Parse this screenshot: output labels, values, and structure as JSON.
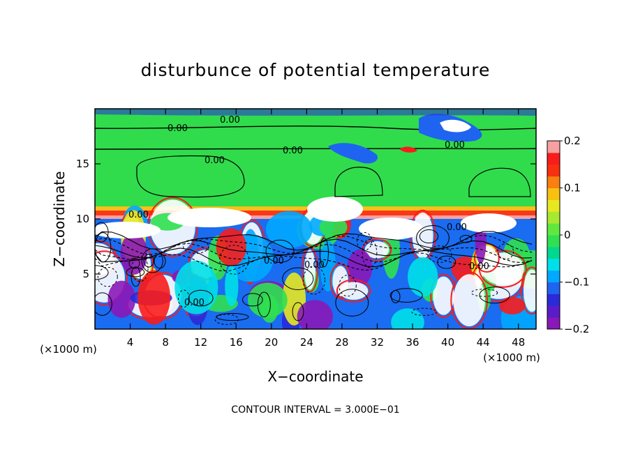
{
  "chart_data": {
    "type": "heatmap",
    "title": "disturbunce of potential temperature",
    "xlabel": "X−coordinate",
    "ylabel": "Z−coordinate",
    "x_unit": "(×1000 m)",
    "z_unit": "(×1000 m)",
    "xlim": [
      0,
      50
    ],
    "ylim": [
      0,
      20
    ],
    "x_ticks": [
      "4",
      "8",
      "12",
      "16",
      "20",
      "24",
      "28",
      "32",
      "36",
      "40",
      "44",
      "48"
    ],
    "y_ticks": [
      "5",
      "10",
      "15"
    ],
    "colorbar": {
      "range": [
        -0.2,
        0.2
      ],
      "ticks": [
        "0.2",
        "0.1",
        "0",
        "−0.1",
        "−0.2"
      ],
      "colors": [
        "#8a18b8",
        "#5a1cc8",
        "#2a2ad8",
        "#1e64f0",
        "#00a8ff",
        "#00e0e8",
        "#00d890",
        "#30e050",
        "#60e840",
        "#a8e830",
        "#e8e820",
        "#f8c010",
        "#f88010",
        "#f83010",
        "#f81c1c",
        "#f8a0a0"
      ]
    },
    "contour_labels": [
      "0.00",
      "0.00",
      "0.00",
      "0.00",
      "0.00",
      "0.00",
      "0.00",
      "0.00",
      "0.00",
      "0.00",
      "0.00"
    ],
    "contour_interval_note": "CONTOUR INTERVAL = 3.000E−01",
    "grid": false
  }
}
